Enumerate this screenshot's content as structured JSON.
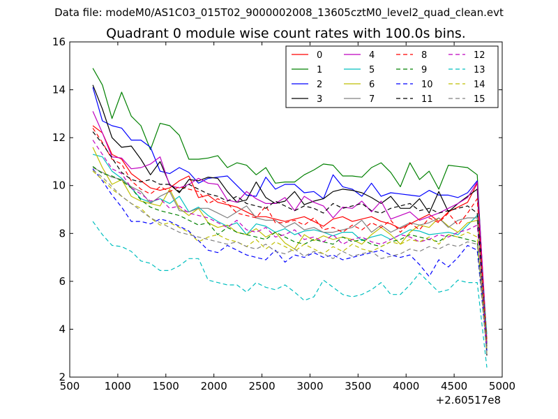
{
  "chart_data": {
    "type": "line",
    "suptitle": "Data file: modeM0/AS1C03_015T02_9000002008_13605cztM0_level2_quad_clean.evt",
    "title": "Quadrant 0 module wise count rates with 100.0s bins.",
    "xlabel": "",
    "ylabel": "",
    "x_offset_label": "+2.60517e8",
    "xlim": [
      500,
      5000
    ],
    "ylim": [
      2,
      16
    ],
    "xticks": [
      500,
      1000,
      1500,
      2000,
      2500,
      3000,
      3500,
      4000,
      4500,
      5000
    ],
    "yticks": [
      2,
      4,
      6,
      8,
      10,
      12,
      14,
      16
    ],
    "x": [
      740,
      840,
      940,
      1040,
      1140,
      1240,
      1340,
      1440,
      1540,
      1640,
      1740,
      1840,
      1940,
      2040,
      2140,
      2240,
      2340,
      2440,
      2540,
      2640,
      2740,
      2840,
      2940,
      3040,
      3140,
      3240,
      3340,
      3440,
      3540,
      3640,
      3740,
      3840,
      3940,
      4040,
      4140,
      4240,
      4340,
      4440,
      4540,
      4640,
      4740,
      4840
    ],
    "legend_position": "top-right",
    "legend_columns": 4,
    "series": [
      {
        "name": "0",
        "color": "#ff0000",
        "dash": "solid",
        "values": [
          12.5,
          12.2,
          11.3,
          11.1,
          10.5,
          10.2,
          9.9,
          9.8,
          9.9,
          10.2,
          10.4,
          9.5,
          9.6,
          9.3,
          9.2,
          9.1,
          8.9,
          8.7,
          8.7,
          8.6,
          8.5,
          8.6,
          8.7,
          8.5,
          8.3,
          8.6,
          8.7,
          8.5,
          8.6,
          8.7,
          8.5,
          8.4,
          8.2,
          8.4,
          8.6,
          8.8,
          8.5,
          8.9,
          9.1,
          9.3,
          10.1,
          3.3
        ]
      },
      {
        "name": "1",
        "color": "#008000",
        "dash": "solid",
        "values": [
          14.9,
          14.2,
          12.8,
          13.9,
          12.9,
          12.5,
          11.5,
          12.6,
          12.5,
          12.1,
          11.1,
          11.1,
          11.15,
          11.25,
          10.75,
          10.95,
          10.85,
          10.45,
          10.75,
          10.1,
          10.15,
          10.15,
          10.45,
          10.65,
          10.9,
          10.85,
          10.4,
          10.4,
          10.35,
          10.75,
          10.95,
          10.55,
          9.95,
          10.95,
          10.25,
          10.6,
          9.85,
          10.85,
          10.8,
          10.75,
          10.45,
          3.1
        ]
      },
      {
        "name": "2",
        "color": "#0000ff",
        "dash": "solid",
        "values": [
          14.1,
          12.7,
          12.5,
          12.4,
          11.9,
          11.9,
          11.6,
          10.6,
          10.5,
          10.75,
          10.55,
          10.1,
          10.3,
          10.35,
          10.4,
          10.0,
          9.6,
          9.55,
          10.35,
          9.85,
          10.05,
          10.05,
          9.7,
          9.75,
          9.45,
          10.45,
          9.95,
          9.85,
          9.55,
          10.1,
          9.55,
          9.7,
          9.65,
          9.6,
          9.55,
          9.8,
          9.6,
          9.6,
          9.5,
          9.7,
          10.2,
          3.4
        ]
      },
      {
        "name": "3",
        "color": "#000000",
        "dash": "solid",
        "values": [
          14.2,
          13.2,
          12.0,
          11.6,
          11.65,
          11.1,
          10.45,
          11.0,
          10.05,
          9.7,
          10.25,
          10.2,
          10.35,
          10.3,
          9.75,
          9.3,
          9.4,
          10.15,
          9.5,
          9.25,
          9.35,
          9.75,
          9.2,
          9.35,
          9.45,
          9.75,
          9.85,
          9.8,
          9.7,
          9.5,
          9.25,
          9.55,
          9.05,
          9.05,
          9.45,
          8.85,
          9.75,
          8.9,
          9.25,
          9.55,
          9.85,
          2.9
        ]
      },
      {
        "name": "4",
        "color": "#bf00bf",
        "dash": "solid",
        "values": [
          13.1,
          12.2,
          11.2,
          11.15,
          10.7,
          10.75,
          10.9,
          11.2,
          10.0,
          9.9,
          10.05,
          10.3,
          10.1,
          10.05,
          9.4,
          9.3,
          9.75,
          9.45,
          9.25,
          9.25,
          9.5,
          8.95,
          9.55,
          9.3,
          9.15,
          8.65,
          9.1,
          9.05,
          9.35,
          8.9,
          9.35,
          8.6,
          8.75,
          8.9,
          8.55,
          8.7,
          8.85,
          9.05,
          9.25,
          9.5,
          10.15,
          3.6
        ]
      },
      {
        "name": "5",
        "color": "#00bfbf",
        "dash": "solid",
        "values": [
          11.3,
          11.2,
          10.6,
          10.3,
          9.9,
          9.45,
          9.3,
          9.45,
          9.25,
          9.55,
          8.9,
          9.1,
          8.75,
          8.5,
          8.3,
          8.45,
          7.95,
          8.4,
          8.3,
          8.05,
          8.2,
          7.95,
          8.1,
          8.15,
          8.05,
          7.9,
          8.05,
          8.05,
          7.7,
          7.85,
          7.95,
          7.75,
          7.95,
          8.15,
          8.1,
          7.95,
          8.0,
          8.05,
          7.95,
          8.35,
          8.75,
          3.8
        ]
      },
      {
        "name": "6",
        "color": "#bfbf00",
        "dash": "solid",
        "values": [
          11.6,
          10.75,
          10.05,
          10.25,
          9.55,
          9.35,
          9.25,
          9.15,
          9.85,
          9.05,
          8.75,
          9.05,
          8.45,
          8.25,
          8.35,
          8.05,
          7.95,
          8.2,
          7.85,
          8.05,
          7.6,
          7.35,
          7.95,
          7.7,
          7.9,
          7.75,
          7.85,
          7.75,
          7.55,
          7.95,
          8.25,
          7.95,
          7.55,
          8.05,
          8.35,
          8.25,
          8.65,
          8.3,
          8.05,
          8.45,
          8.55,
          3.5
        ]
      },
      {
        "name": "7",
        "color": "#808080",
        "dash": "solid",
        "values": [
          10.75,
          10.55,
          10.35,
          10.25,
          9.95,
          9.75,
          9.25,
          9.55,
          9.75,
          8.95,
          8.9,
          9.05,
          9.05,
          8.85,
          8.65,
          8.9,
          9.15,
          8.65,
          8.55,
          8.55,
          8.25,
          8.45,
          8.15,
          8.25,
          8.05,
          8.05,
          8.15,
          8.25,
          8.55,
          8.05,
          8.35,
          8.05,
          8.25,
          8.45,
          8.35,
          8.45,
          8.65,
          8.25,
          8.55,
          8.65,
          8.65,
          3.2
        ]
      },
      {
        "name": "8",
        "color": "#ff0000",
        "dash": "dashed",
        "values": [
          12.4,
          11.8,
          11.1,
          10.9,
          10.2,
          9.85,
          9.65,
          9.95,
          9.75,
          9.95,
          9.85,
          9.75,
          9.25,
          9.45,
          9.25,
          8.85,
          8.75,
          8.65,
          9.15,
          8.45,
          8.45,
          8.55,
          8.35,
          8.65,
          8.15,
          8.25,
          8.05,
          8.35,
          8.15,
          8.45,
          8.25,
          8.55,
          8.05,
          8.45,
          8.15,
          8.65,
          8.45,
          8.85,
          8.35,
          8.85,
          9.45,
          3.5
        ]
      },
      {
        "name": "9",
        "color": "#008000",
        "dash": "dashed",
        "values": [
          10.8,
          10.5,
          10.4,
          10.2,
          9.9,
          9.4,
          9.1,
          8.95,
          8.85,
          8.75,
          8.55,
          8.35,
          8.45,
          7.95,
          8.25,
          8.05,
          7.95,
          7.85,
          7.75,
          8.05,
          7.85,
          7.65,
          7.55,
          7.75,
          7.65,
          7.55,
          7.85,
          7.65,
          7.75,
          7.55,
          7.45,
          7.65,
          7.75,
          7.95,
          7.85,
          7.75,
          7.65,
          7.95,
          7.85,
          7.75,
          7.65,
          3.4
        ]
      },
      {
        "name": "10",
        "color": "#0000ff",
        "dash": "dashed",
        "values": [
          10.7,
          10.2,
          9.6,
          9.1,
          8.5,
          8.5,
          8.4,
          8.6,
          8.5,
          8.3,
          8.1,
          7.7,
          7.3,
          7.2,
          7.5,
          7.3,
          7.1,
          7.0,
          6.9,
          7.3,
          6.8,
          7.1,
          7.0,
          7.2,
          7.0,
          7.1,
          6.9,
          7.0,
          7.1,
          7.2,
          7.3,
          7.1,
          7.0,
          7.1,
          6.7,
          6.2,
          6.9,
          6.6,
          7.0,
          7.5,
          7.3,
          3.1
        ]
      },
      {
        "name": "11",
        "color": "#000000",
        "dash": "dashed",
        "values": [
          12.25,
          11.75,
          11.15,
          10.55,
          10.25,
          10.15,
          10.25,
          10.05,
          10.05,
          9.75,
          10.05,
          9.85,
          9.65,
          9.55,
          9.35,
          9.55,
          9.25,
          9.15,
          9.05,
          9.35,
          9.15,
          8.95,
          9.15,
          9.05,
          8.85,
          9.25,
          9.05,
          9.15,
          9.25,
          8.95,
          8.85,
          9.05,
          9.15,
          9.25,
          8.95,
          9.05,
          8.85,
          8.95,
          9.05,
          9.15,
          8.85,
          3.3
        ]
      },
      {
        "name": "12",
        "color": "#bf00bf",
        "dash": "dashed",
        "values": [
          11.9,
          11.3,
          10.7,
          10.5,
          9.9,
          9.65,
          9.35,
          9.45,
          9.05,
          9.15,
          8.85,
          8.75,
          8.65,
          8.45,
          8.25,
          8.55,
          8.15,
          8.05,
          8.25,
          7.85,
          7.95,
          8.15,
          7.75,
          7.85,
          7.65,
          7.95,
          7.55,
          7.75,
          7.85,
          7.65,
          7.55,
          7.75,
          7.95,
          7.85,
          7.65,
          7.75,
          7.95,
          7.85,
          8.05,
          8.15,
          8.35,
          3.3
        ]
      },
      {
        "name": "13",
        "color": "#00bfbf",
        "dash": "dashed",
        "values": [
          8.5,
          7.95,
          7.5,
          7.45,
          7.25,
          6.85,
          6.75,
          6.45,
          6.45,
          6.65,
          6.95,
          6.95,
          6.05,
          5.95,
          5.85,
          5.85,
          5.55,
          5.95,
          5.75,
          5.65,
          5.85,
          5.55,
          5.2,
          5.35,
          6.05,
          5.75,
          5.45,
          5.35,
          5.45,
          5.65,
          5.95,
          5.45,
          5.45,
          5.85,
          6.35,
          5.95,
          5.55,
          5.65,
          6.05,
          5.95,
          5.95,
          2.4
        ]
      },
      {
        "name": "14",
        "color": "#bfbf00",
        "dash": "dashed",
        "values": [
          10.6,
          10.25,
          9.85,
          9.55,
          9.25,
          9.05,
          8.65,
          8.35,
          8.45,
          8.25,
          8.05,
          7.65,
          7.85,
          7.95,
          7.75,
          7.65,
          7.45,
          7.75,
          7.35,
          7.65,
          7.45,
          7.25,
          7.55,
          7.35,
          7.15,
          7.45,
          7.25,
          7.55,
          7.35,
          7.25,
          7.45,
          7.65,
          7.55,
          7.75,
          7.65,
          7.85,
          7.55,
          7.95,
          7.85,
          8.05,
          7.85,
          3.0
        ]
      },
      {
        "name": "15",
        "color": "#808080",
        "dash": "dashed",
        "values": [
          10.65,
          10.35,
          9.95,
          9.55,
          9.25,
          8.95,
          8.65,
          8.45,
          8.25,
          8.05,
          7.95,
          7.85,
          7.75,
          7.65,
          7.55,
          7.65,
          7.45,
          7.35,
          7.55,
          7.25,
          7.15,
          7.35,
          7.05,
          7.25,
          7.15,
          6.95,
          7.25,
          7.05,
          7.15,
          7.25,
          6.95,
          7.05,
          7.15,
          7.35,
          7.25,
          7.45,
          7.35,
          7.55,
          7.45,
          7.65,
          7.55,
          2.9
        ]
      }
    ]
  }
}
